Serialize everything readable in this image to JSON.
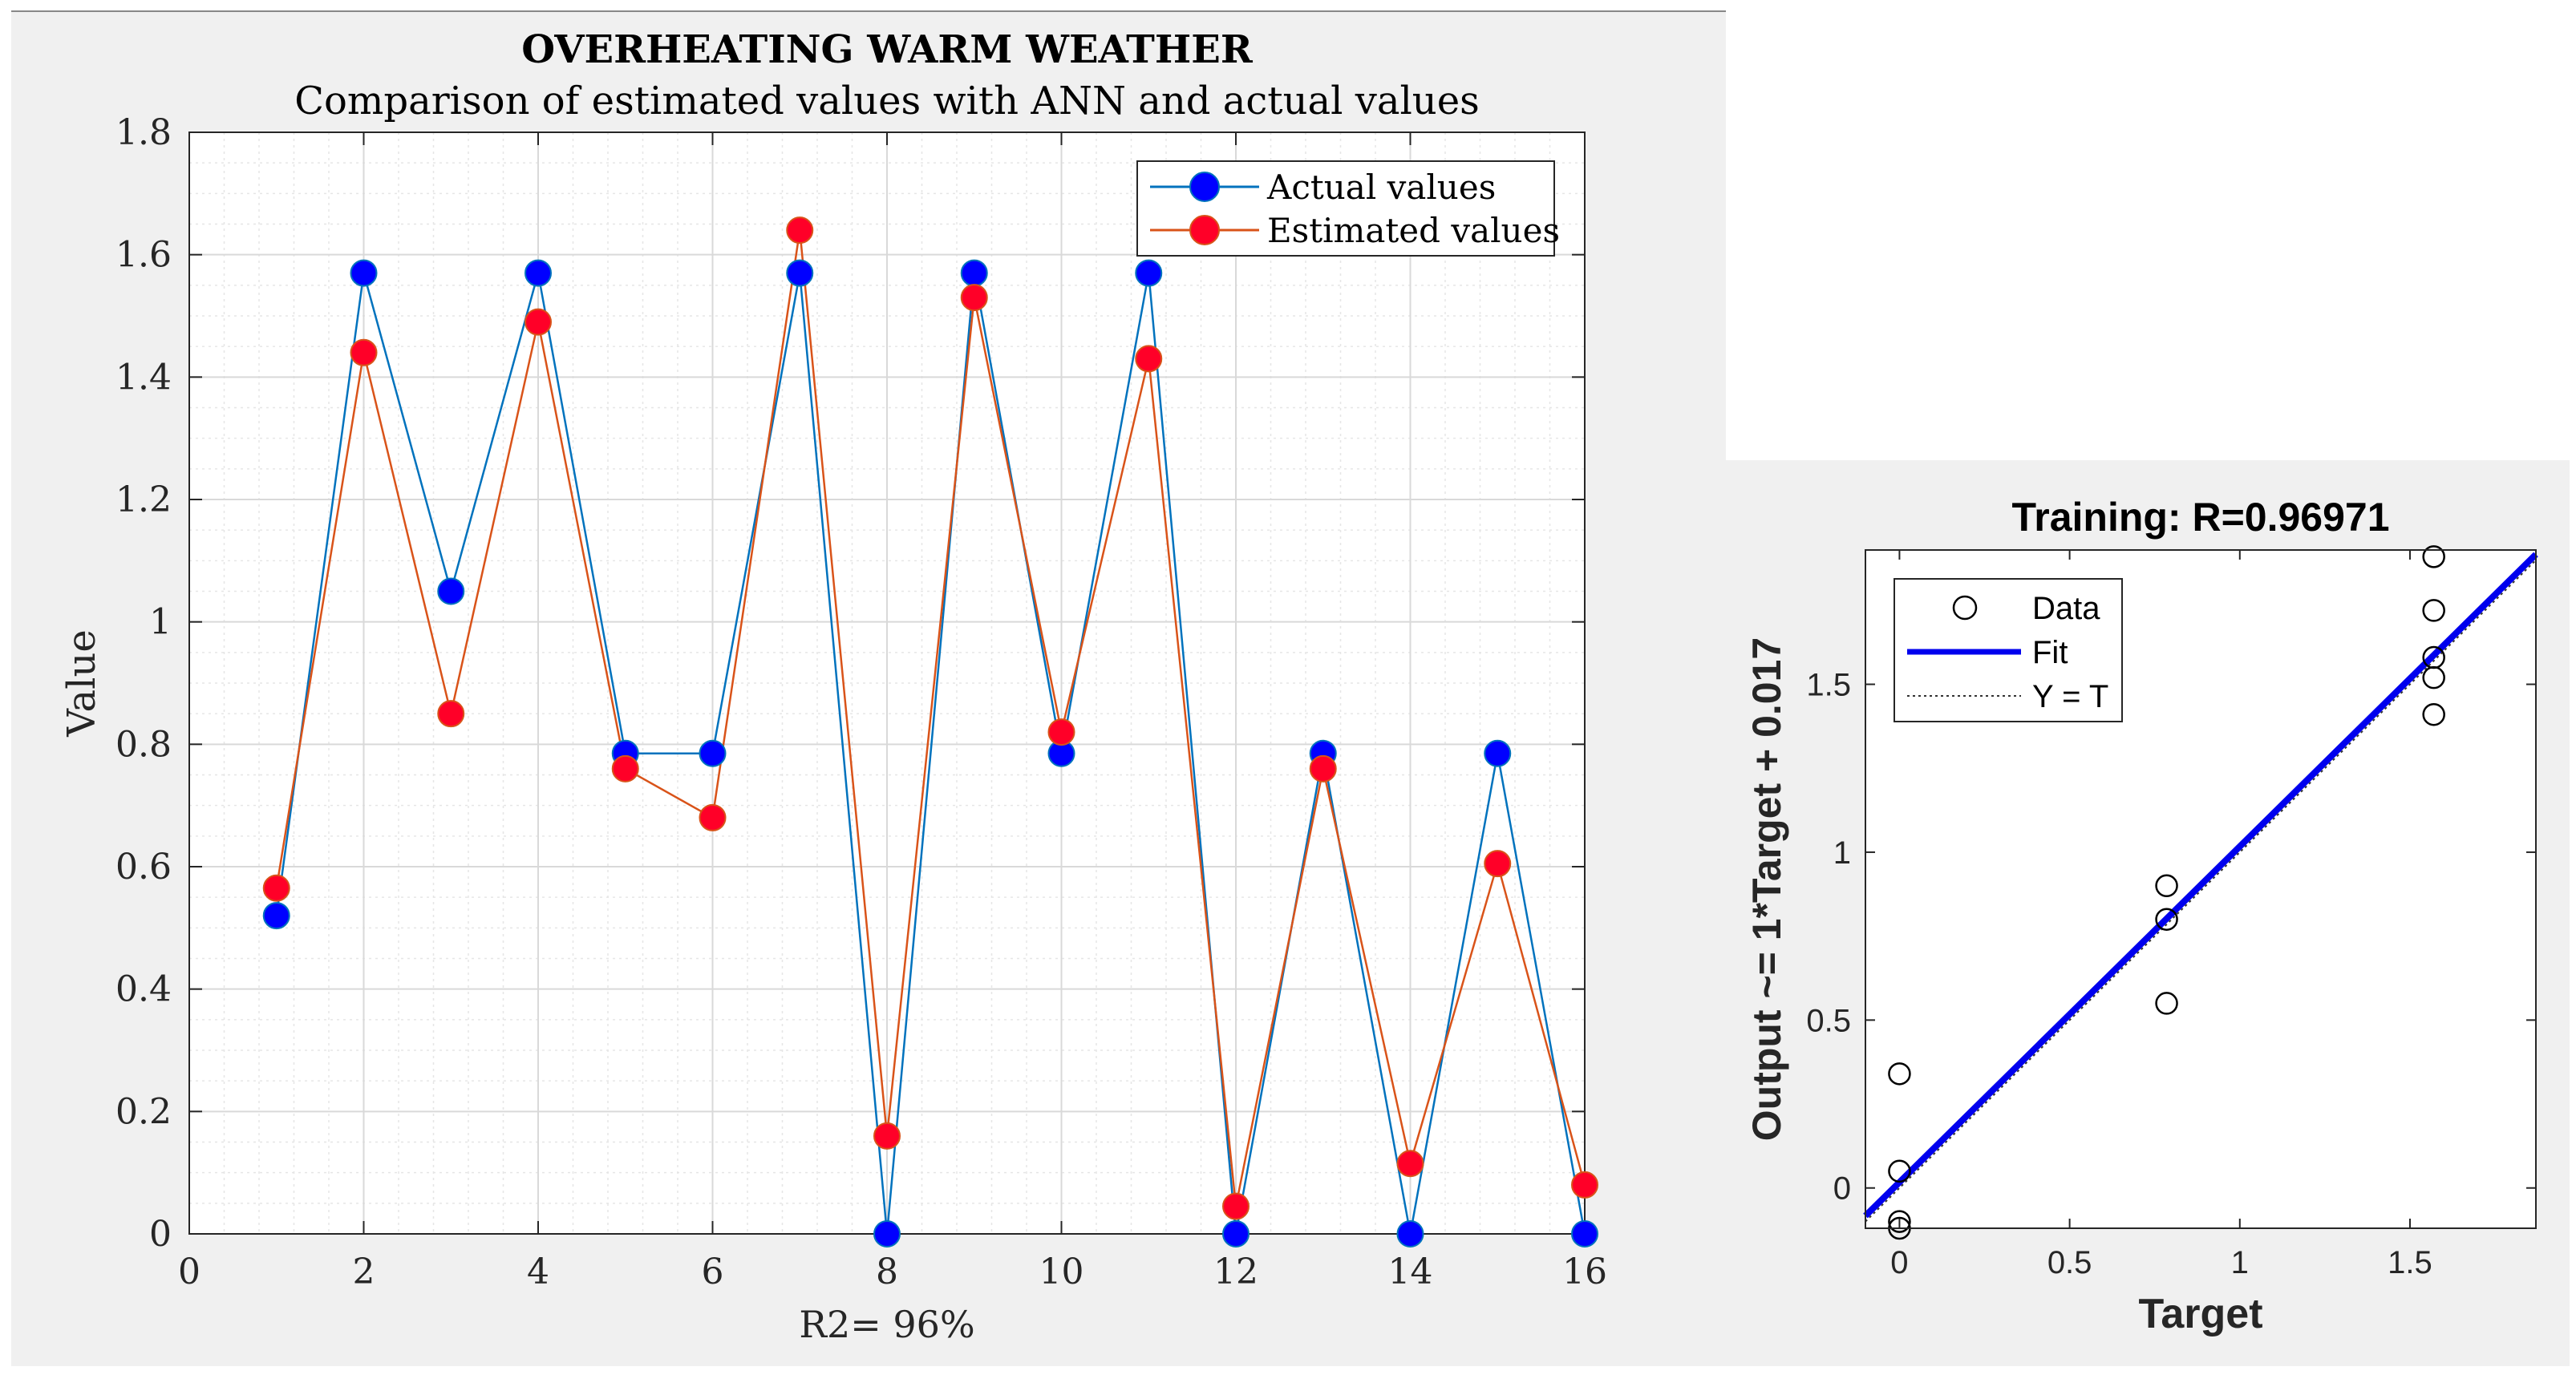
{
  "colors": {
    "background": "#f0f0f0",
    "axes_bg": "#ffffff",
    "actual_line": "#0072bd",
    "actual_marker": "#0000ff",
    "estimated_line": "#d95319",
    "estimated_marker": "#ff0028",
    "fit_line": "#0000ee",
    "grid": "#d9d9d9"
  },
  "chart_data": [
    {
      "type": "line",
      "title": "OVERHEATING WARM WEATHER",
      "subtitle": "Comparison of estimated values with ANN and actual values",
      "xlabel": "R2= 96%",
      "ylabel": "Value",
      "xlim": [
        0,
        16
      ],
      "ylim": [
        0,
        1.8
      ],
      "xticks": [
        "0",
        "2",
        "4",
        "6",
        "8",
        "10",
        "12",
        "14",
        "16"
      ],
      "yticks": [
        "0",
        "0.2",
        "0.4",
        "0.6",
        "0.8",
        "1",
        "1.2",
        "1.4",
        "1.6",
        "1.8"
      ],
      "grid": true,
      "legend_position": "top-right",
      "x": [
        1,
        2,
        3,
        4,
        5,
        6,
        7,
        8,
        9,
        10,
        11,
        12,
        13,
        14,
        15,
        16
      ],
      "series": [
        {
          "name": "Actual values",
          "values": [
            0.52,
            1.57,
            1.05,
            1.57,
            0.785,
            0.785,
            1.57,
            0,
            1.57,
            0.785,
            1.57,
            0,
            0.785,
            0,
            0.785,
            0
          ]
        },
        {
          "name": "Estimated values",
          "values": [
            0.565,
            1.44,
            0.85,
            1.49,
            0.76,
            0.68,
            1.64,
            0.16,
            1.53,
            0.82,
            1.43,
            0.045,
            0.76,
            0.115,
            0.605,
            0.08
          ]
        }
      ]
    },
    {
      "type": "scatter",
      "title": "Training: R=0.96971",
      "xlabel": "Target",
      "ylabel": "Output ~= 1*Target + 0.017",
      "xlim": [
        -0.1,
        1.87
      ],
      "ylim": [
        -0.12,
        1.9
      ],
      "xticks": [
        "0",
        "0.5",
        "1",
        "1.5"
      ],
      "yticks": [
        "0",
        "0.5",
        "1",
        "1.5"
      ],
      "legend_position": "top-left",
      "legend": [
        "Data",
        "Fit",
        "Y = T"
      ],
      "points": [
        [
          0,
          0.34
        ],
        [
          0,
          0.05
        ],
        [
          0,
          -0.1
        ],
        [
          0,
          -0.12
        ],
        [
          0.785,
          0.9
        ],
        [
          0.785,
          0.8
        ],
        [
          0.785,
          0.55
        ],
        [
          1.57,
          1.88
        ],
        [
          1.57,
          1.72
        ],
        [
          1.57,
          1.58
        ],
        [
          1.57,
          1.52
        ],
        [
          1.57,
          1.41
        ]
      ],
      "fit": {
        "slope": 1,
        "intercept": 0.017
      }
    }
  ]
}
